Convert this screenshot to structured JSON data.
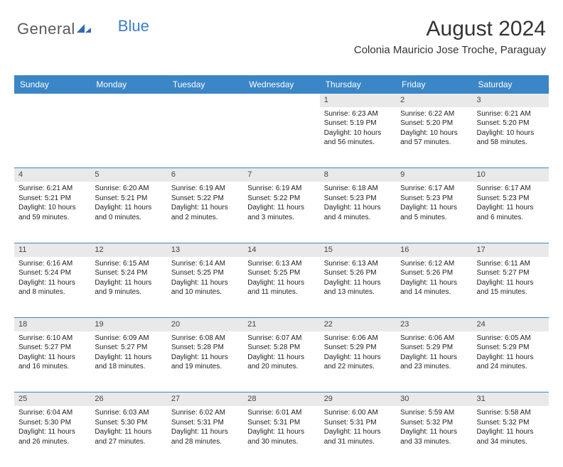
{
  "logo": {
    "text1": "General",
    "text2": "Blue"
  },
  "header": {
    "month_title": "August 2024",
    "location": "Colonia Mauricio Jose Troche, Paraguay"
  },
  "colors": {
    "header_bg": "#3b86c7",
    "header_text": "#ffffff",
    "daynum_bg": "#e9e9e9",
    "border": "#3b86c7",
    "logo_gray": "#5a5a5a",
    "logo_blue": "#3b7fc4"
  },
  "weekdays": [
    "Sunday",
    "Monday",
    "Tuesday",
    "Wednesday",
    "Thursday",
    "Friday",
    "Saturday"
  ],
  "weeks": [
    [
      null,
      null,
      null,
      null,
      {
        "n": "1",
        "sr": "Sunrise: 6:23 AM",
        "ss": "Sunset: 5:19 PM",
        "dl": "Daylight: 10 hours and 56 minutes."
      },
      {
        "n": "2",
        "sr": "Sunrise: 6:22 AM",
        "ss": "Sunset: 5:20 PM",
        "dl": "Daylight: 10 hours and 57 minutes."
      },
      {
        "n": "3",
        "sr": "Sunrise: 6:21 AM",
        "ss": "Sunset: 5:20 PM",
        "dl": "Daylight: 10 hours and 58 minutes."
      }
    ],
    [
      {
        "n": "4",
        "sr": "Sunrise: 6:21 AM",
        "ss": "Sunset: 5:21 PM",
        "dl": "Daylight: 10 hours and 59 minutes."
      },
      {
        "n": "5",
        "sr": "Sunrise: 6:20 AM",
        "ss": "Sunset: 5:21 PM",
        "dl": "Daylight: 11 hours and 0 minutes."
      },
      {
        "n": "6",
        "sr": "Sunrise: 6:19 AM",
        "ss": "Sunset: 5:22 PM",
        "dl": "Daylight: 11 hours and 2 minutes."
      },
      {
        "n": "7",
        "sr": "Sunrise: 6:19 AM",
        "ss": "Sunset: 5:22 PM",
        "dl": "Daylight: 11 hours and 3 minutes."
      },
      {
        "n": "8",
        "sr": "Sunrise: 6:18 AM",
        "ss": "Sunset: 5:23 PM",
        "dl": "Daylight: 11 hours and 4 minutes."
      },
      {
        "n": "9",
        "sr": "Sunrise: 6:17 AM",
        "ss": "Sunset: 5:23 PM",
        "dl": "Daylight: 11 hours and 5 minutes."
      },
      {
        "n": "10",
        "sr": "Sunrise: 6:17 AM",
        "ss": "Sunset: 5:23 PM",
        "dl": "Daylight: 11 hours and 6 minutes."
      }
    ],
    [
      {
        "n": "11",
        "sr": "Sunrise: 6:16 AM",
        "ss": "Sunset: 5:24 PM",
        "dl": "Daylight: 11 hours and 8 minutes."
      },
      {
        "n": "12",
        "sr": "Sunrise: 6:15 AM",
        "ss": "Sunset: 5:24 PM",
        "dl": "Daylight: 11 hours and 9 minutes."
      },
      {
        "n": "13",
        "sr": "Sunrise: 6:14 AM",
        "ss": "Sunset: 5:25 PM",
        "dl": "Daylight: 11 hours and 10 minutes."
      },
      {
        "n": "14",
        "sr": "Sunrise: 6:13 AM",
        "ss": "Sunset: 5:25 PM",
        "dl": "Daylight: 11 hours and 11 minutes."
      },
      {
        "n": "15",
        "sr": "Sunrise: 6:13 AM",
        "ss": "Sunset: 5:26 PM",
        "dl": "Daylight: 11 hours and 13 minutes."
      },
      {
        "n": "16",
        "sr": "Sunrise: 6:12 AM",
        "ss": "Sunset: 5:26 PM",
        "dl": "Daylight: 11 hours and 14 minutes."
      },
      {
        "n": "17",
        "sr": "Sunrise: 6:11 AM",
        "ss": "Sunset: 5:27 PM",
        "dl": "Daylight: 11 hours and 15 minutes."
      }
    ],
    [
      {
        "n": "18",
        "sr": "Sunrise: 6:10 AM",
        "ss": "Sunset: 5:27 PM",
        "dl": "Daylight: 11 hours and 16 minutes."
      },
      {
        "n": "19",
        "sr": "Sunrise: 6:09 AM",
        "ss": "Sunset: 5:27 PM",
        "dl": "Daylight: 11 hours and 18 minutes."
      },
      {
        "n": "20",
        "sr": "Sunrise: 6:08 AM",
        "ss": "Sunset: 5:28 PM",
        "dl": "Daylight: 11 hours and 19 minutes."
      },
      {
        "n": "21",
        "sr": "Sunrise: 6:07 AM",
        "ss": "Sunset: 5:28 PM",
        "dl": "Daylight: 11 hours and 20 minutes."
      },
      {
        "n": "22",
        "sr": "Sunrise: 6:06 AM",
        "ss": "Sunset: 5:29 PM",
        "dl": "Daylight: 11 hours and 22 minutes."
      },
      {
        "n": "23",
        "sr": "Sunrise: 6:06 AM",
        "ss": "Sunset: 5:29 PM",
        "dl": "Daylight: 11 hours and 23 minutes."
      },
      {
        "n": "24",
        "sr": "Sunrise: 6:05 AM",
        "ss": "Sunset: 5:29 PM",
        "dl": "Daylight: 11 hours and 24 minutes."
      }
    ],
    [
      {
        "n": "25",
        "sr": "Sunrise: 6:04 AM",
        "ss": "Sunset: 5:30 PM",
        "dl": "Daylight: 11 hours and 26 minutes."
      },
      {
        "n": "26",
        "sr": "Sunrise: 6:03 AM",
        "ss": "Sunset: 5:30 PM",
        "dl": "Daylight: 11 hours and 27 minutes."
      },
      {
        "n": "27",
        "sr": "Sunrise: 6:02 AM",
        "ss": "Sunset: 5:31 PM",
        "dl": "Daylight: 11 hours and 28 minutes."
      },
      {
        "n": "28",
        "sr": "Sunrise: 6:01 AM",
        "ss": "Sunset: 5:31 PM",
        "dl": "Daylight: 11 hours and 30 minutes."
      },
      {
        "n": "29",
        "sr": "Sunrise: 6:00 AM",
        "ss": "Sunset: 5:31 PM",
        "dl": "Daylight: 11 hours and 31 minutes."
      },
      {
        "n": "30",
        "sr": "Sunrise: 5:59 AM",
        "ss": "Sunset: 5:32 PM",
        "dl": "Daylight: 11 hours and 33 minutes."
      },
      {
        "n": "31",
        "sr": "Sunrise: 5:58 AM",
        "ss": "Sunset: 5:32 PM",
        "dl": "Daylight: 11 hours and 34 minutes."
      }
    ]
  ]
}
